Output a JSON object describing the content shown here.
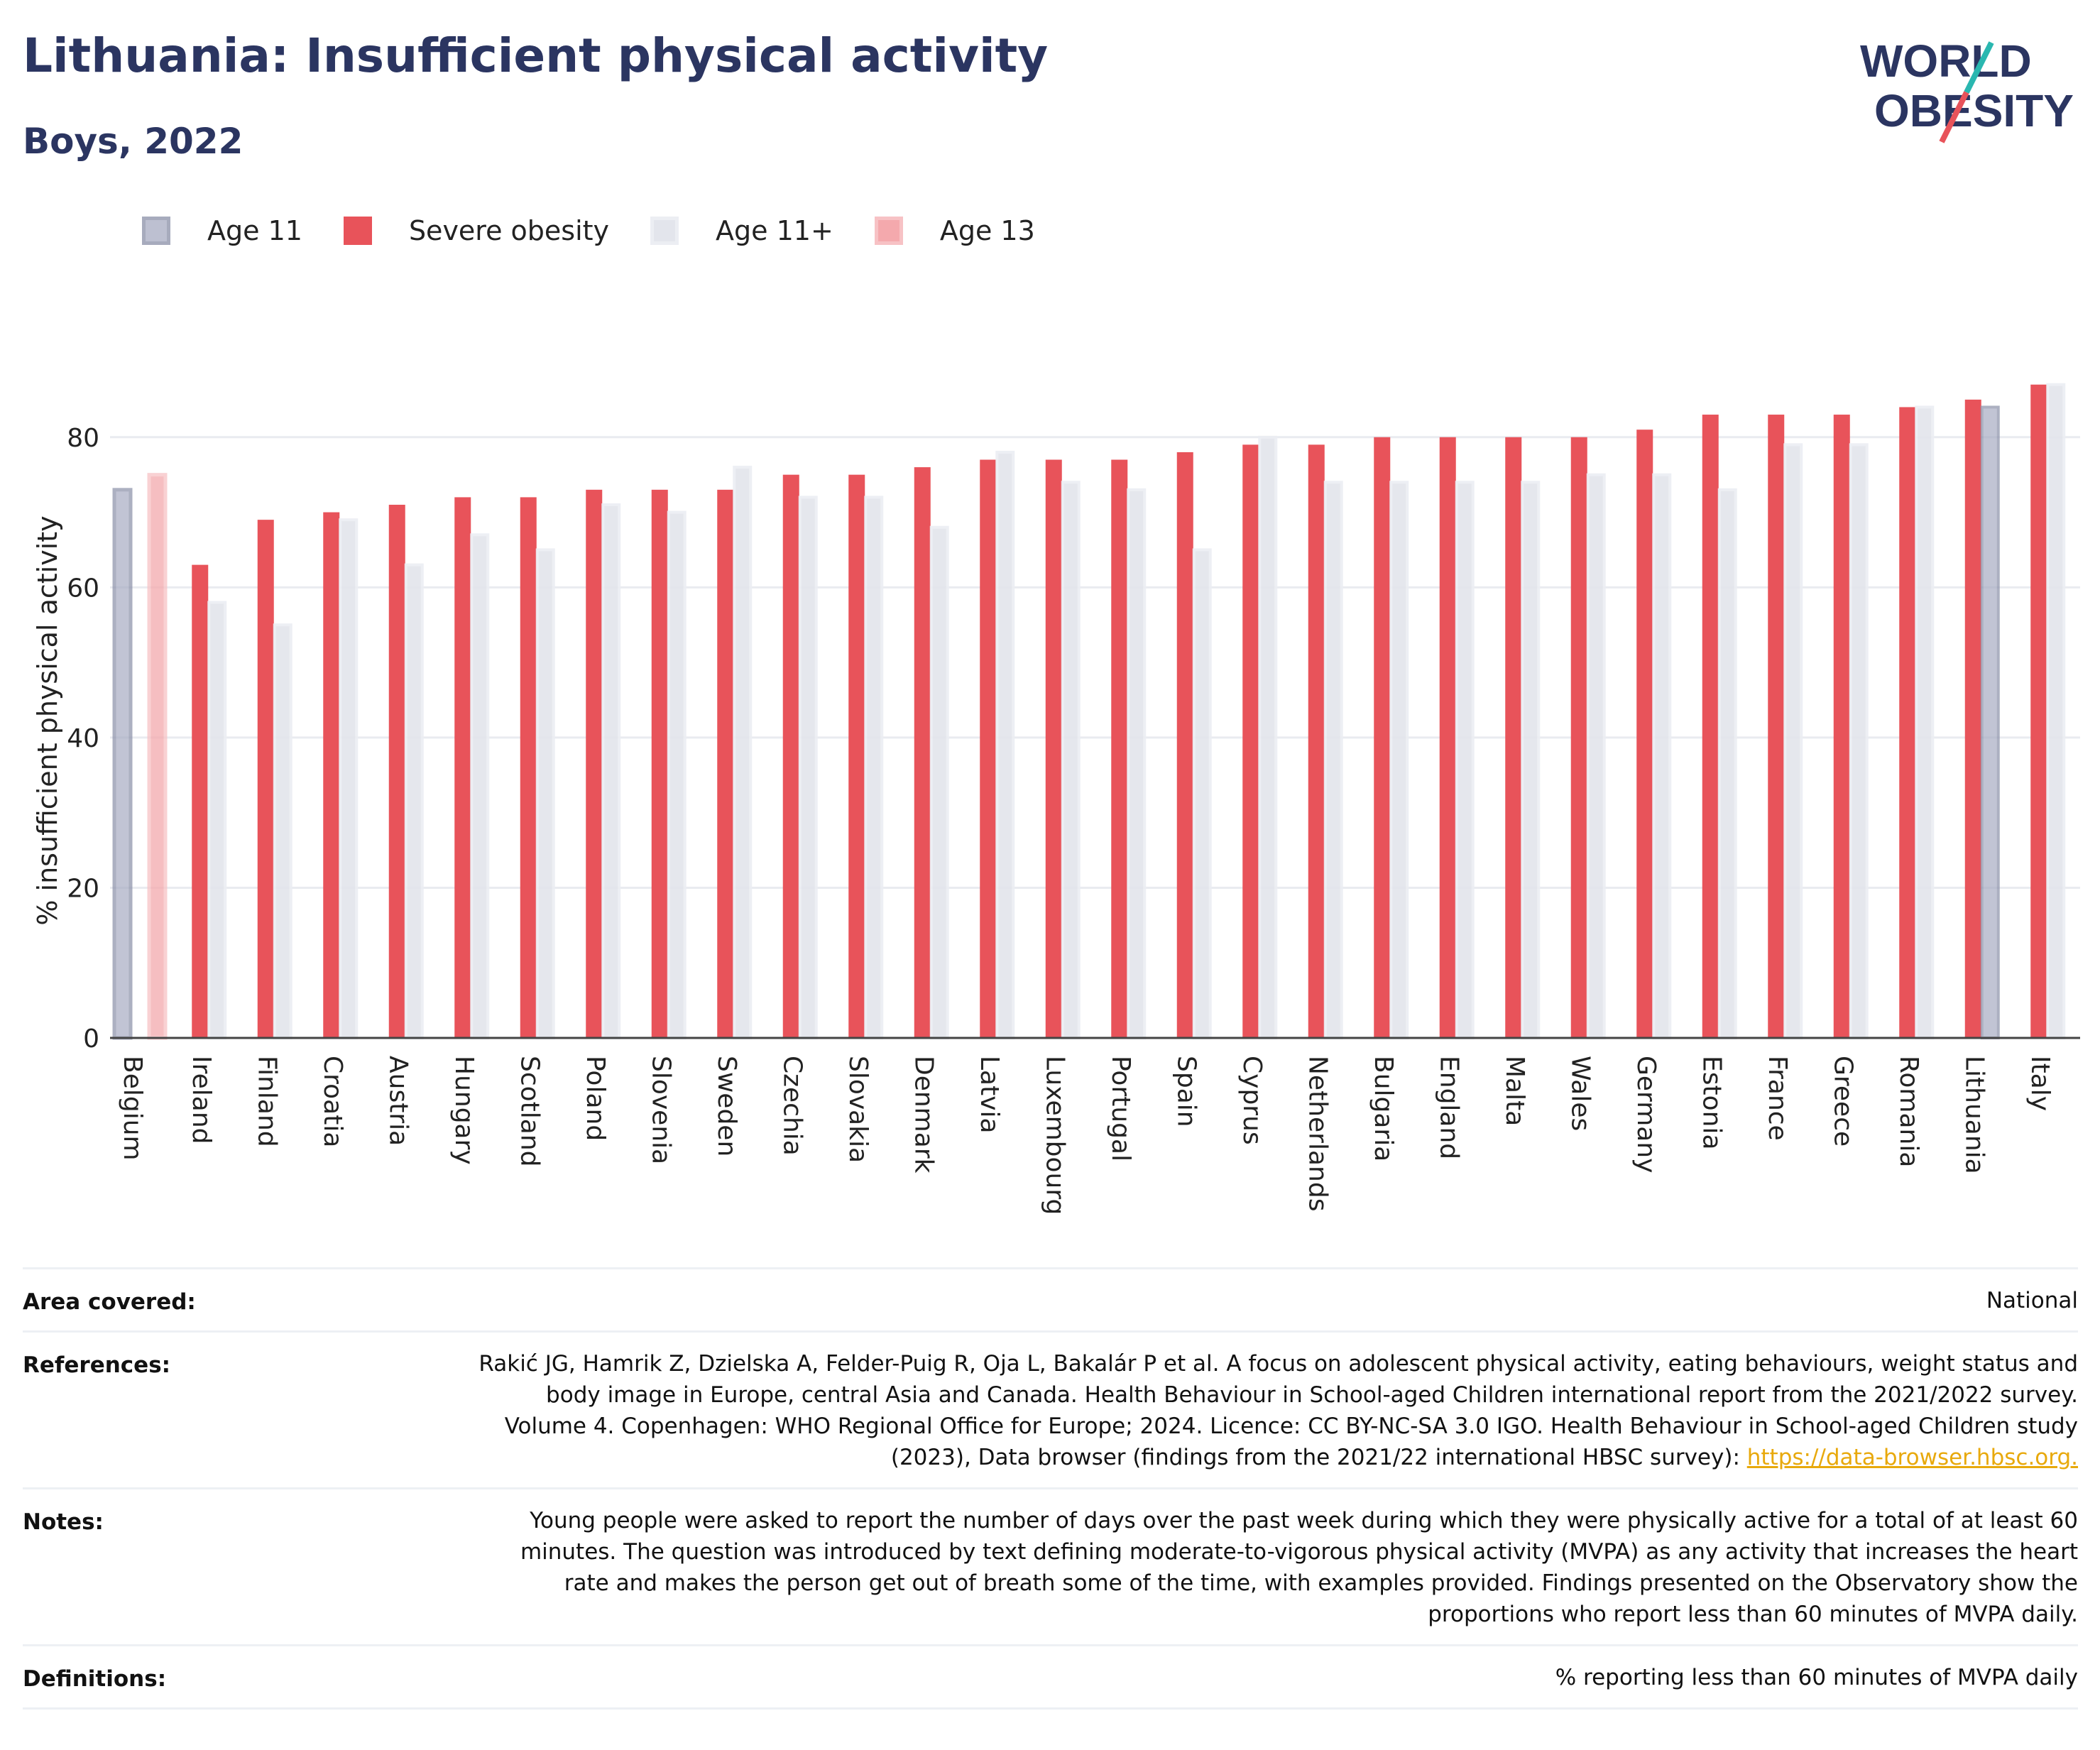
{
  "header": {
    "title": "Lithuania: Insufficient physical activity",
    "subtitle": "Boys, 2022"
  },
  "logo": {
    "line1": "WORLD",
    "line2": "OBESITY"
  },
  "colors": {
    "title": "#2b3561",
    "age11": "#a7acc2",
    "severe_obesity": "#e8535a",
    "age11plus": "#e3e5ec",
    "age13": "#f4a9ad",
    "grid": "#e9ebf0",
    "link": "#e8a90c"
  },
  "legend": [
    {
      "key": "age11",
      "label": "Age 11"
    },
    {
      "key": "severe",
      "label": "Severe obesity"
    },
    {
      "key": "age11plus",
      "label": "Age 11+"
    },
    {
      "key": "age13",
      "label": "Age 13"
    }
  ],
  "chart_data": {
    "type": "bar",
    "ylabel": "% insufficient physical activity",
    "xlabel": "",
    "ylim": [
      0,
      90
    ],
    "yticks": [
      0,
      20,
      40,
      60,
      80
    ],
    "grid": true,
    "legend_position": "top-left",
    "categories": [
      "Belgium",
      "Ireland",
      "Finland",
      "Croatia",
      "Austria",
      "Hungary",
      "Scotland",
      "Poland",
      "Slovenia",
      "Sweden",
      "Czechia",
      "Slovakia",
      "Denmark",
      "Latvia",
      "Luxembourg",
      "Portugal",
      "Spain",
      "Cyprus",
      "Netherlands",
      "Bulgaria",
      "England",
      "Malta",
      "Wales",
      "Germany",
      "Estonia",
      "France",
      "Greece",
      "Romania",
      "Lithuania",
      "Italy"
    ],
    "series": [
      {
        "name": "Age 11",
        "key": "age11",
        "values": [
          73,
          null,
          null,
          null,
          null,
          null,
          null,
          null,
          null,
          null,
          null,
          null,
          null,
          null,
          null,
          null,
          null,
          null,
          null,
          null,
          null,
          null,
          null,
          null,
          null,
          null,
          null,
          null,
          null,
          null
        ]
      },
      {
        "name": "Age 13",
        "key": "age13",
        "values": [
          75,
          null,
          null,
          null,
          null,
          null,
          null,
          null,
          null,
          null,
          null,
          null,
          null,
          null,
          null,
          null,
          null,
          null,
          null,
          null,
          null,
          null,
          null,
          null,
          null,
          null,
          null,
          null,
          null,
          null
        ]
      },
      {
        "name": "Severe obesity",
        "key": "severe",
        "values": [
          null,
          63,
          69,
          70,
          71,
          72,
          72,
          73,
          73,
          73,
          75,
          75,
          76,
          77,
          77,
          77,
          78,
          79,
          79,
          80,
          80,
          80,
          80,
          81,
          83,
          83,
          83,
          84,
          85,
          87
        ]
      },
      {
        "name": "Age 11+",
        "key": "age11plus",
        "values": [
          null,
          58,
          55,
          69,
          63,
          67,
          65,
          71,
          70,
          76,
          72,
          72,
          68,
          78,
          74,
          73,
          65,
          80,
          74,
          74,
          74,
          74,
          75,
          75,
          73,
          79,
          79,
          84,
          null,
          87
        ]
      },
      {
        "name": "Age 11",
        "key": "age11",
        "values": [
          null,
          null,
          null,
          null,
          null,
          null,
          null,
          null,
          null,
          null,
          null,
          null,
          null,
          null,
          null,
          null,
          null,
          null,
          null,
          null,
          null,
          null,
          null,
          null,
          null,
          null,
          null,
          null,
          84,
          null
        ]
      }
    ]
  },
  "info": [
    {
      "key": "Area covered:",
      "value": "National"
    },
    {
      "key": "References:",
      "value": "Rakić JG, Hamrik Z, Dzielska A, Felder-Puig R, Oja L, Bakalár P et al. A focus on adolescent physical activity, eating behaviours, weight status and body image in Europe, central Asia and Canada. Health Behaviour in School-aged Children international report from the 2021/2022 survey. Volume 4. Copenhagen: WHO Regional Office for Europe; 2024. Licence: CC BY-NC-SA 3.0 IGO. Health Behaviour in School-aged Children study (2023), Data browser (findings from the 2021/22 international HBSC survey): ",
      "link": "https://data-browser.hbsc.org."
    },
    {
      "key": "Notes:",
      "value": "Young people were asked to report the number of days over the past week during which they were physically active for a total of at least 60 minutes. The question was introduced by text defining moderate-to-vigorous physical activity (MVPA) as any activity that increases the heart rate and makes the person get out of breath some of the time, with examples provided. Findings presented on the Observatory show the proportions who report less than 60 minutes of MVPA daily."
    },
    {
      "key": "Definitions:",
      "value": "% reporting less than 60 minutes of MVPA daily"
    }
  ]
}
